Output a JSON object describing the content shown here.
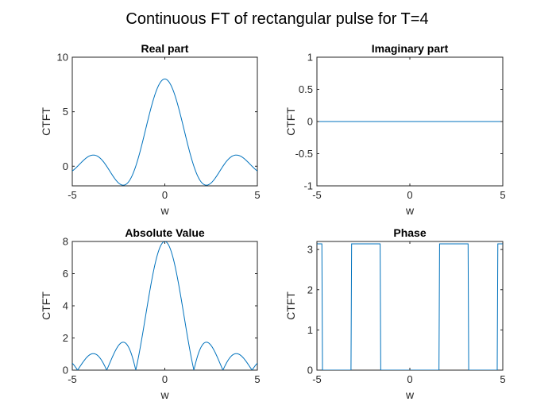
{
  "figure": {
    "title": "Continuous FT of rectangular pulse for T=4",
    "line_color": "#0072BD"
  },
  "chart_data": [
    {
      "type": "line",
      "id": "real",
      "title": "Real part",
      "xlabel": "w",
      "ylabel": "CTFT",
      "xlim": [
        -5,
        5
      ],
      "ylim": [
        -1.8,
        10
      ],
      "xticks": [
        -5,
        0,
        5
      ],
      "yticks": [
        0,
        5,
        10
      ],
      "grid": false,
      "series": [
        {
          "function": "real",
          "T": 4
        }
      ]
    },
    {
      "type": "line",
      "id": "imag",
      "title": "Imaginary part",
      "xlabel": "w",
      "ylabel": "CTFT",
      "xlim": [
        -5,
        5
      ],
      "ylim": [
        -1,
        1
      ],
      "xticks": [
        -5,
        0,
        5
      ],
      "yticks": [
        -1,
        -0.5,
        0,
        0.5,
        1
      ],
      "grid": false,
      "series": [
        {
          "function": "imag",
          "T": 4
        }
      ]
    },
    {
      "type": "line",
      "id": "abs",
      "title": "Absolute Value",
      "xlabel": "w",
      "ylabel": "CTFT",
      "xlim": [
        -5,
        5
      ],
      "ylim": [
        0,
        8
      ],
      "xticks": [
        -5,
        0,
        5
      ],
      "yticks": [
        0,
        2,
        4,
        6,
        8
      ],
      "grid": false,
      "series": [
        {
          "function": "abs",
          "T": 4
        }
      ]
    },
    {
      "type": "line",
      "id": "phase",
      "title": "Phase",
      "xlabel": "w",
      "ylabel": "CTFT",
      "xlim": [
        -5,
        5
      ],
      "ylim": [
        0,
        3.2
      ],
      "xticks": [
        -5,
        0,
        5
      ],
      "yticks": [
        0,
        1,
        2,
        3
      ],
      "grid": false,
      "series": [
        {
          "function": "phase",
          "T": 4
        }
      ]
    }
  ]
}
